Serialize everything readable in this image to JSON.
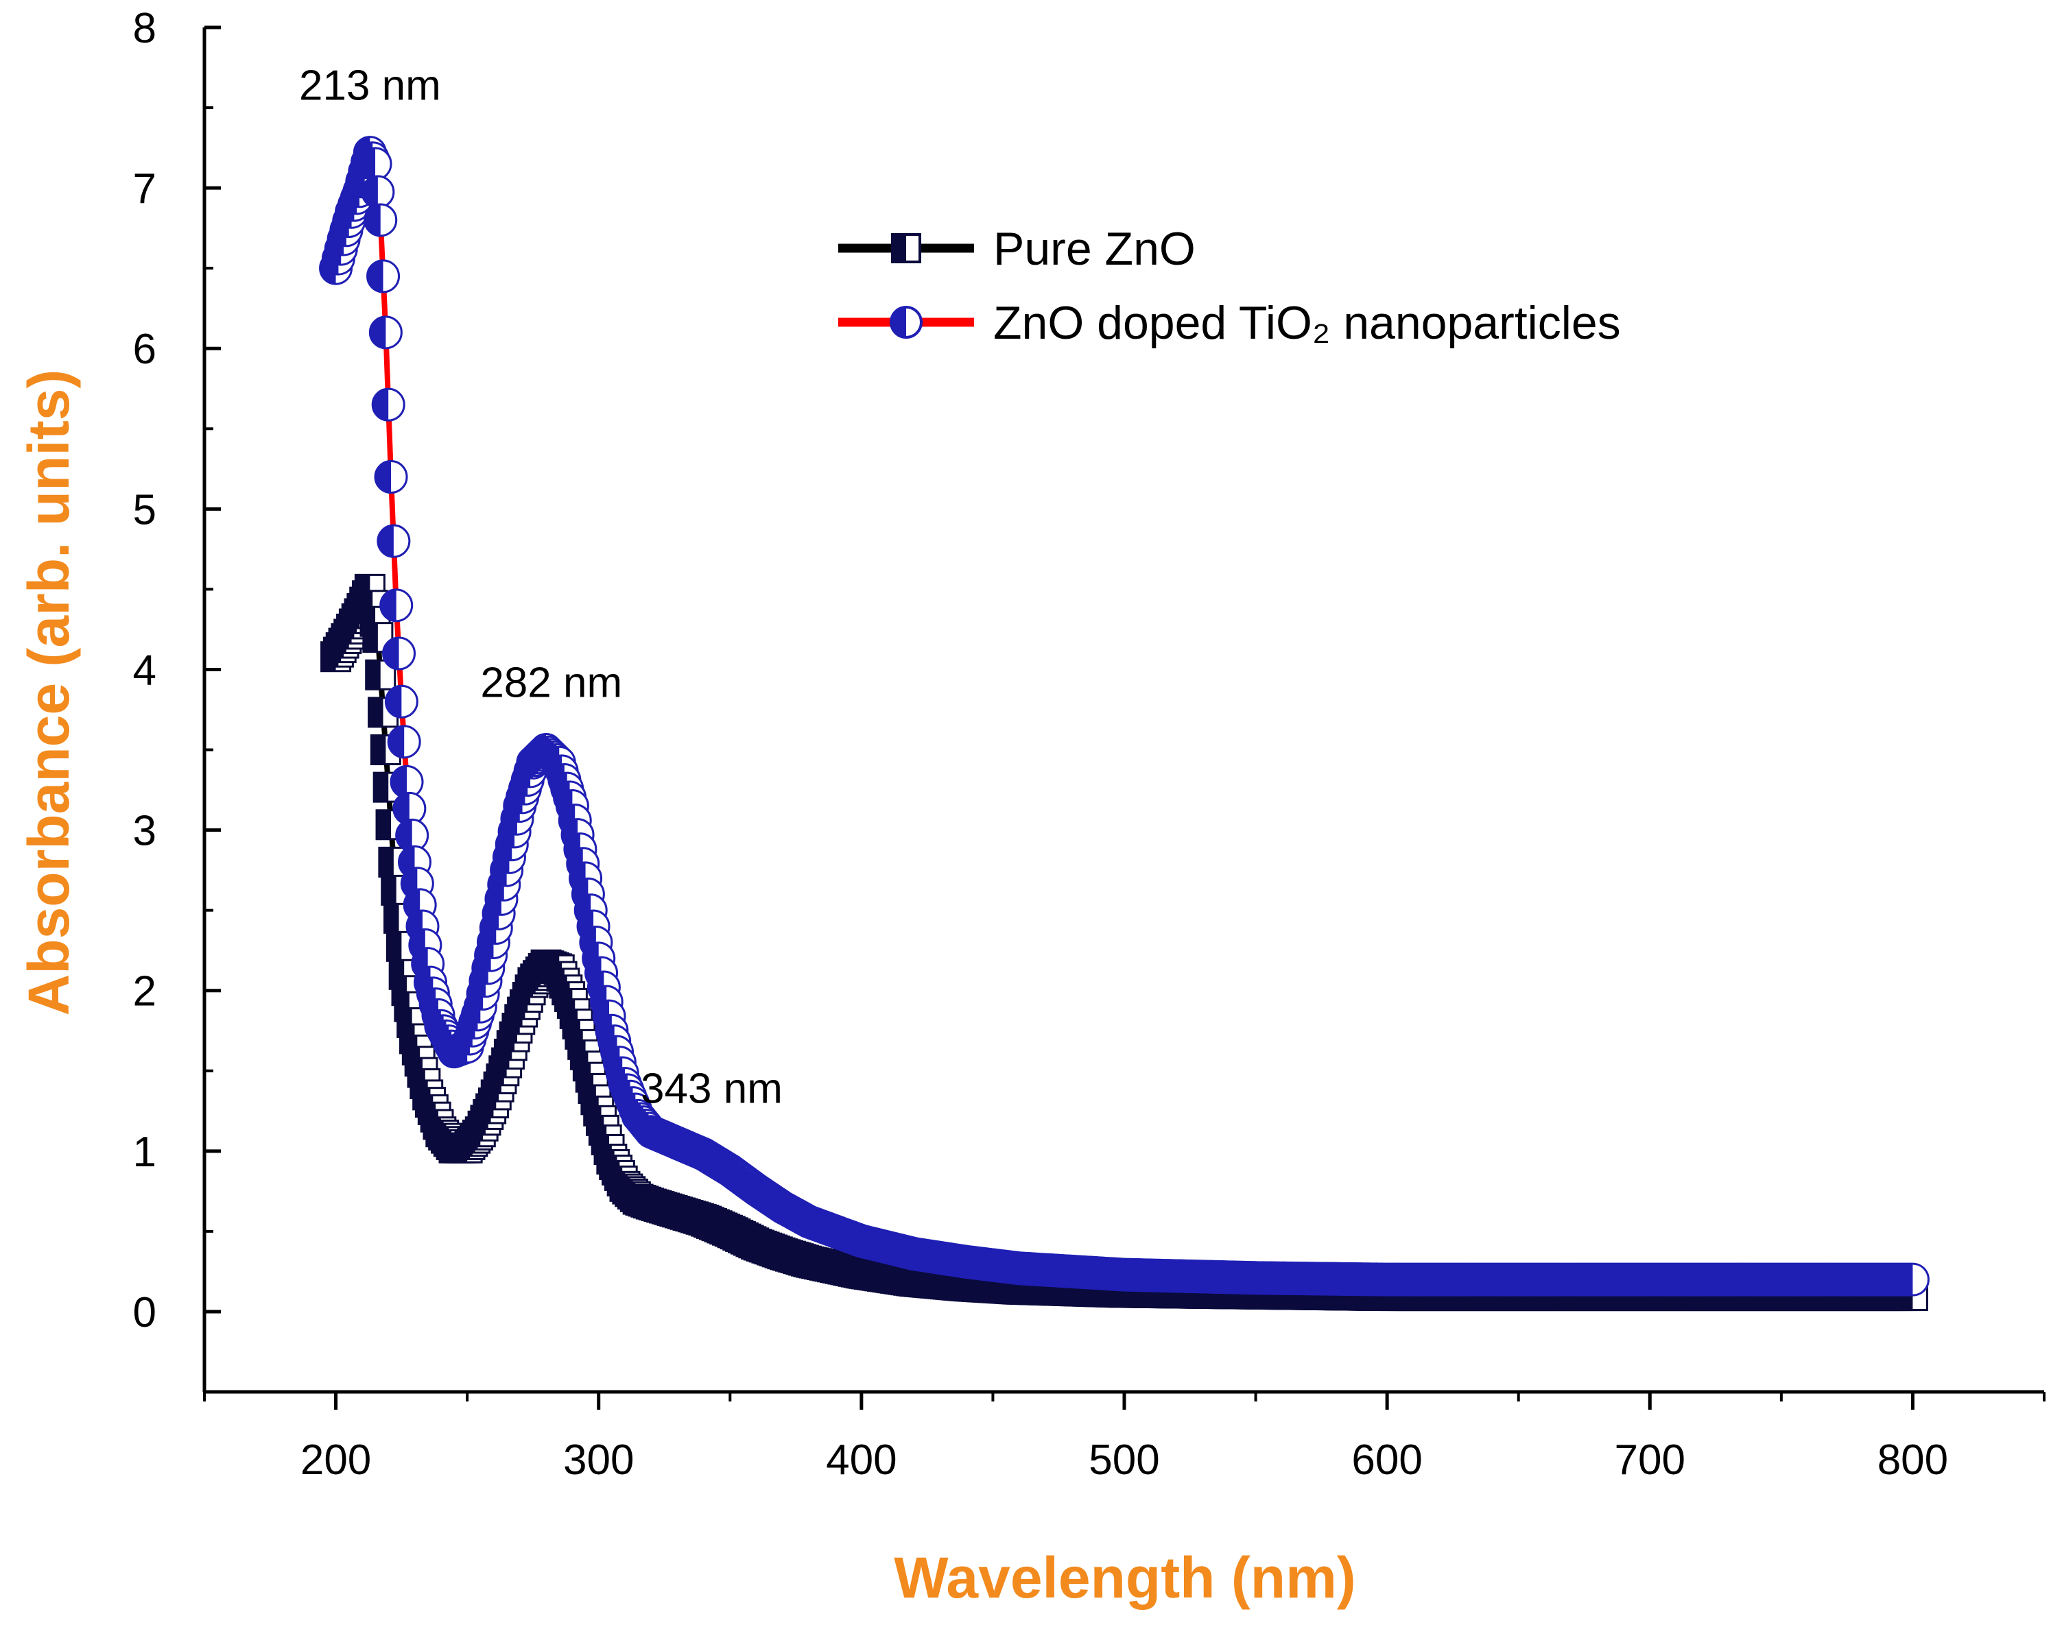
{
  "chart_data": {
    "type": "scatter",
    "xlabel": "Wavelength (nm)",
    "ylabel": "Absorbance (arb. units)",
    "axis_label_color": "#F28A1E",
    "xlim": [
      150,
      850
    ],
    "ylim": [
      -0.5,
      8
    ],
    "xticks": [
      200,
      300,
      400,
      500,
      600,
      700,
      800
    ],
    "yticks": [
      0,
      1,
      2,
      3,
      4,
      5,
      6,
      7,
      8
    ],
    "grid": false,
    "legend_position": "top-right",
    "series": [
      {
        "name": "Pure ZnO",
        "line_color": "#000000",
        "marker": "square-half",
        "marker_color": "#0A0A3C",
        "x": [
          200,
          205,
          210,
          213,
          216,
          219,
          222,
          226,
          230,
          235,
          240,
          245,
          250,
          255,
          260,
          265,
          270,
          275,
          280,
          285,
          290,
          295,
          300,
          305,
          310,
          315,
          320,
          330,
          340,
          350,
          360,
          370,
          380,
          400,
          420,
          440,
          460,
          480,
          500,
          550,
          600,
          650,
          700,
          750,
          800
        ],
        "y": [
          4.08,
          4.22,
          4.38,
          4.5,
          4.2,
          3.5,
          2.8,
          2.1,
          1.7,
          1.35,
          1.12,
          1.02,
          1.02,
          1.12,
          1.3,
          1.55,
          1.82,
          2.05,
          2.16,
          2.13,
          1.92,
          1.6,
          1.25,
          0.95,
          0.78,
          0.7,
          0.67,
          0.62,
          0.57,
          0.5,
          0.42,
          0.36,
          0.31,
          0.24,
          0.19,
          0.16,
          0.14,
          0.13,
          0.12,
          0.11,
          0.1,
          0.1,
          0.1,
          0.1,
          0.1
        ]
      },
      {
        "name": "ZnO doped TiO₂ nanoparticles",
        "line_color": "#FF0000",
        "marker": "circle-half",
        "marker_color": "#1F1FB4",
        "x": [
          200,
          203,
          206,
          209,
          211,
          213,
          215,
          217,
          219,
          221,
          223,
          225,
          227,
          230,
          233,
          236,
          240,
          245,
          250,
          255,
          260,
          265,
          270,
          275,
          280,
          285,
          290,
          295,
          300,
          305,
          310,
          315,
          320,
          330,
          340,
          350,
          360,
          370,
          380,
          400,
          420,
          440,
          460,
          480,
          500,
          550,
          600,
          650,
          700,
          750,
          800
        ],
        "y": [
          6.5,
          6.68,
          6.85,
          6.98,
          7.1,
          7.22,
          7.15,
          6.8,
          6.1,
          5.2,
          4.4,
          3.8,
          3.3,
          2.8,
          2.4,
          2.05,
          1.78,
          1.62,
          1.65,
          1.9,
          2.3,
          2.75,
          3.15,
          3.42,
          3.5,
          3.42,
          3.15,
          2.7,
          2.2,
          1.75,
          1.42,
          1.22,
          1.12,
          1.05,
          0.98,
          0.88,
          0.76,
          0.65,
          0.56,
          0.44,
          0.36,
          0.31,
          0.27,
          0.25,
          0.23,
          0.21,
          0.2,
          0.2,
          0.2,
          0.2,
          0.2
        ]
      }
    ],
    "annotations": [
      {
        "text": "213 nm",
        "x": 213,
        "y": 7.55
      },
      {
        "text": "282 nm",
        "x": 282,
        "y": 3.83
      },
      {
        "text": "343 nm",
        "x": 343,
        "y": 1.3
      }
    ]
  }
}
